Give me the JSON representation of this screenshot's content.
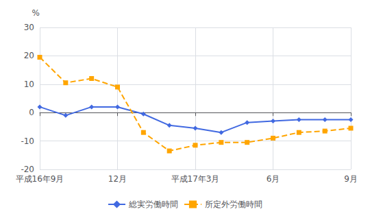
{
  "chart_data": {
    "type": "line",
    "categories": [
      "平成16年9月",
      null,
      null,
      "12月",
      null,
      null,
      "平成17年3月",
      null,
      null,
      "6月",
      null,
      null,
      "9月"
    ],
    "series": [
      {
        "name": "総実労働時間",
        "color": "#4169e1",
        "marker": "diamond",
        "line_style": "solid",
        "values": [
          2.0,
          -1.0,
          2.0,
          2.0,
          -0.5,
          -4.5,
          -5.5,
          -7.0,
          -3.5,
          -3.0,
          -2.5,
          -2.5,
          -2.5
        ]
      },
      {
        "name": "所定外労働時間",
        "color": "#FFA500",
        "marker": "square",
        "line_style": "dashed",
        "values": [
          19.5,
          10.5,
          12.0,
          9.0,
          -7.0,
          -13.5,
          -11.5,
          -10.5,
          -10.5,
          -9.0,
          -7.0,
          -6.5,
          -5.5
        ]
      }
    ],
    "ylabel": "%",
    "ylim": [
      -20,
      30
    ],
    "yticks": [
      -20,
      -10,
      0,
      10,
      20,
      30
    ],
    "grid": true,
    "legend": "bottom"
  }
}
